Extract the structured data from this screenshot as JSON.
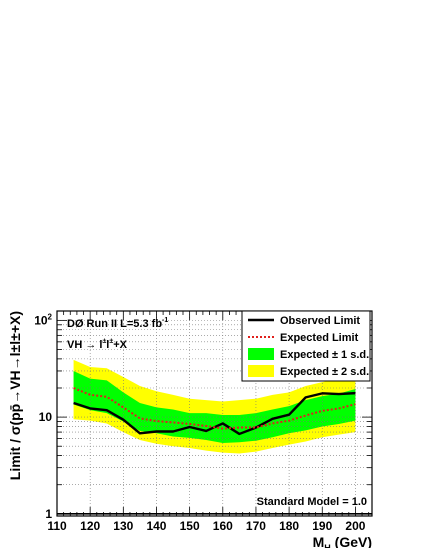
{
  "chart_data": {
    "type": "line",
    "title": "",
    "xlabel": "M",
    "xlabel_sub": "H",
    "xlabel_unit": " (GeV)",
    "ylabel": "Limit / σ(pp̄→VH→l±l±+X)",
    "xlim": [
      110,
      205
    ],
    "ylim": [
      0.95,
      125
    ],
    "yscale": "log",
    "grid": true,
    "x_ticks": [
      110,
      120,
      130,
      140,
      150,
      160,
      170,
      180,
      190,
      200
    ],
    "y_ticks": [
      {
        "value": 1,
        "label": "1"
      },
      {
        "value": 10,
        "label": "10"
      },
      {
        "value": 100,
        "label": "10",
        "sup": "2"
      }
    ],
    "annotations": {
      "experiment": "DØ Run II L=5.3 fb",
      "experiment_sup": "-1",
      "channel": "VH → l",
      "channel_sup1": "±",
      "channel_mid": "l",
      "channel_sup2": "±",
      "channel_tail": "+X",
      "sm_line_label": "Standard Model = 1.0"
    },
    "x": [
      115,
      120,
      125,
      130,
      135,
      140,
      145,
      150,
      155,
      160,
      165,
      170,
      175,
      180,
      185,
      190,
      195,
      200
    ],
    "series": [
      {
        "name": "Observed Limit",
        "color": "#000000",
        "style": "solid",
        "values": [
          14.0,
          12.3,
          11.8,
          9.4,
          6.8,
          7.1,
          7.1,
          7.9,
          7.2,
          8.6,
          6.7,
          7.8,
          9.6,
          10.6,
          16.0,
          17.6,
          17.3,
          17.7
        ]
      },
      {
        "name": "Expected Limit",
        "color": "#e0201c",
        "style": "dotted",
        "values": [
          20.0,
          17.0,
          16.2,
          12.6,
          9.7,
          9.1,
          8.8,
          8.5,
          8.1,
          7.6,
          7.8,
          7.8,
          8.6,
          9.2,
          10.4,
          11.6,
          12.3,
          13.6
        ]
      }
    ],
    "bands": [
      {
        "name": "Expected ± 2 s.d.",
        "color": "#ffff00",
        "lower": [
          9.5,
          9.2,
          8.6,
          7.0,
          5.8,
          5.3,
          5.0,
          4.8,
          4.5,
          4.3,
          4.2,
          4.4,
          4.8,
          5.2,
          5.6,
          6.2,
          6.6,
          7.0
        ],
        "upper": [
          39.0,
          33.0,
          32.0,
          26.0,
          21.0,
          18.5,
          17.0,
          15.5,
          15.0,
          14.5,
          15.0,
          15.5,
          17.0,
          18.0,
          21.0,
          23.0,
          25.0,
          27.5
        ]
      },
      {
        "name": "Expected ± 1 s.d.",
        "color": "#00ff00",
        "lower": [
          13.5,
          11.8,
          11.0,
          9.0,
          7.2,
          6.8,
          6.3,
          6.1,
          5.8,
          5.4,
          5.5,
          5.7,
          6.2,
          6.8,
          7.3,
          8.0,
          8.5,
          9.2
        ],
        "upper": [
          30.0,
          25.0,
          24.0,
          18.0,
          14.0,
          12.6,
          12.0,
          11.0,
          11.0,
          10.5,
          10.5,
          11.0,
          12.0,
          13.0,
          15.0,
          16.5,
          17.5,
          19.5
        ]
      }
    ],
    "reference_line": {
      "value": 1.0,
      "color": "#000000"
    },
    "legend": {
      "position": "top-right",
      "entries": [
        {
          "label": "Observed Limit",
          "kind": "line",
          "color": "#000000"
        },
        {
          "label": "Expected Limit",
          "kind": "dotted",
          "color": "#e0201c"
        },
        {
          "label": "Expected ± 1 s.d.",
          "kind": "box",
          "color": "#00ff00"
        },
        {
          "label": "Expected ± 2 s.d.",
          "kind": "box",
          "color": "#ffff00"
        }
      ]
    }
  }
}
